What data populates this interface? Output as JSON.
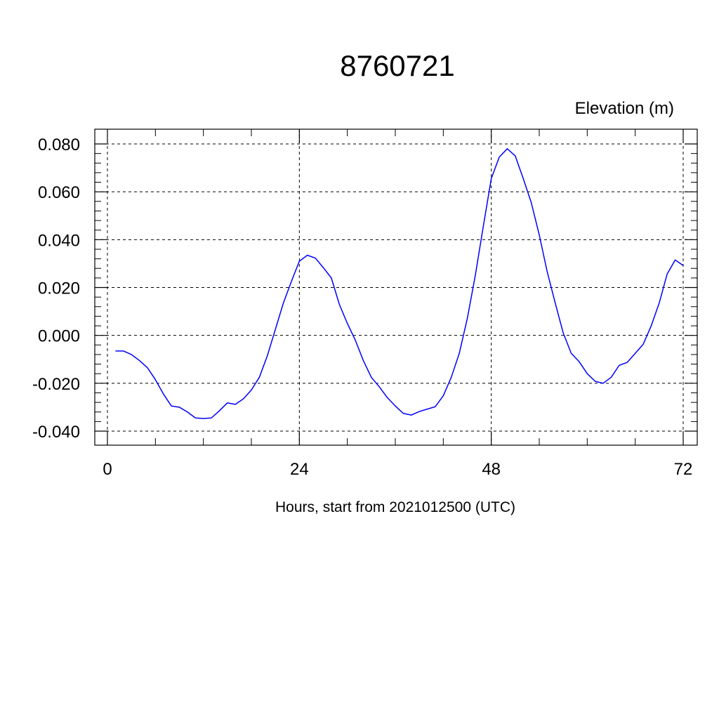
{
  "chart_data": {
    "type": "line",
    "title": "8760721",
    "units_label": "Elevation (m)",
    "xlabel": "Hours, start from 2021012500 (UTC)",
    "ylabel": "",
    "xlim": [
      0,
      72
    ],
    "ylim": [
      -0.04,
      0.08
    ],
    "x_major_ticks": [
      0,
      24,
      48,
      72
    ],
    "x_tick_labels": [
      "0",
      "24",
      "48",
      "72"
    ],
    "x_minor_ticks": [
      6,
      12,
      18,
      30,
      36,
      42,
      54,
      60,
      66
    ],
    "y_major_ticks": [
      -0.04,
      -0.02,
      0.0,
      0.02,
      0.04,
      0.06,
      0.08
    ],
    "y_tick_labels": [
      "-0.040",
      "-0.020",
      "0.000",
      "0.020",
      "0.040",
      "0.060",
      "0.080"
    ],
    "grid": true,
    "line_color": "#0000ff",
    "series": [
      {
        "x": [
          1,
          2,
          3,
          4,
          5,
          6,
          7,
          8,
          9,
          10,
          11,
          12,
          13,
          14,
          15,
          16,
          17,
          18,
          19,
          20,
          21,
          22,
          23,
          24,
          25,
          26,
          27,
          28,
          29,
          30,
          31,
          32,
          33,
          34,
          35,
          36,
          37,
          38,
          39,
          40,
          41,
          42,
          43,
          44,
          45,
          46,
          47,
          48,
          49,
          50,
          51,
          52,
          53,
          54,
          55,
          56,
          57,
          58,
          59,
          60,
          61,
          62,
          63,
          64,
          65,
          66,
          67,
          68,
          69,
          70,
          71,
          72
        ],
        "values": [
          -0.0065,
          -0.0065,
          -0.008,
          -0.0105,
          -0.0135,
          -0.0185,
          -0.0245,
          -0.0295,
          -0.03,
          -0.032,
          -0.0345,
          -0.0347,
          -0.0345,
          -0.0315,
          -0.0282,
          -0.0288,
          -0.0265,
          -0.0228,
          -0.0175,
          -0.0085,
          0.0025,
          0.0135,
          0.0225,
          0.031,
          0.0335,
          0.0323,
          0.0283,
          0.024,
          0.013,
          0.005,
          -0.002,
          -0.0105,
          -0.0175,
          -0.0215,
          -0.026,
          -0.0295,
          -0.0326,
          -0.0333,
          -0.0318,
          -0.0308,
          -0.0298,
          -0.0252,
          -0.0175,
          -0.0075,
          0.007,
          0.025,
          0.0455,
          0.0655,
          0.0745,
          0.078,
          0.075,
          0.0655,
          0.0555,
          0.042,
          0.0265,
          0.0135,
          0.001,
          -0.0075,
          -0.011,
          -0.016,
          -0.0192,
          -0.02,
          -0.0175,
          -0.0125,
          -0.0113,
          -0.0075,
          -0.0037,
          0.004,
          0.0135,
          0.0257,
          0.0315,
          0.0292
        ]
      }
    ]
  }
}
